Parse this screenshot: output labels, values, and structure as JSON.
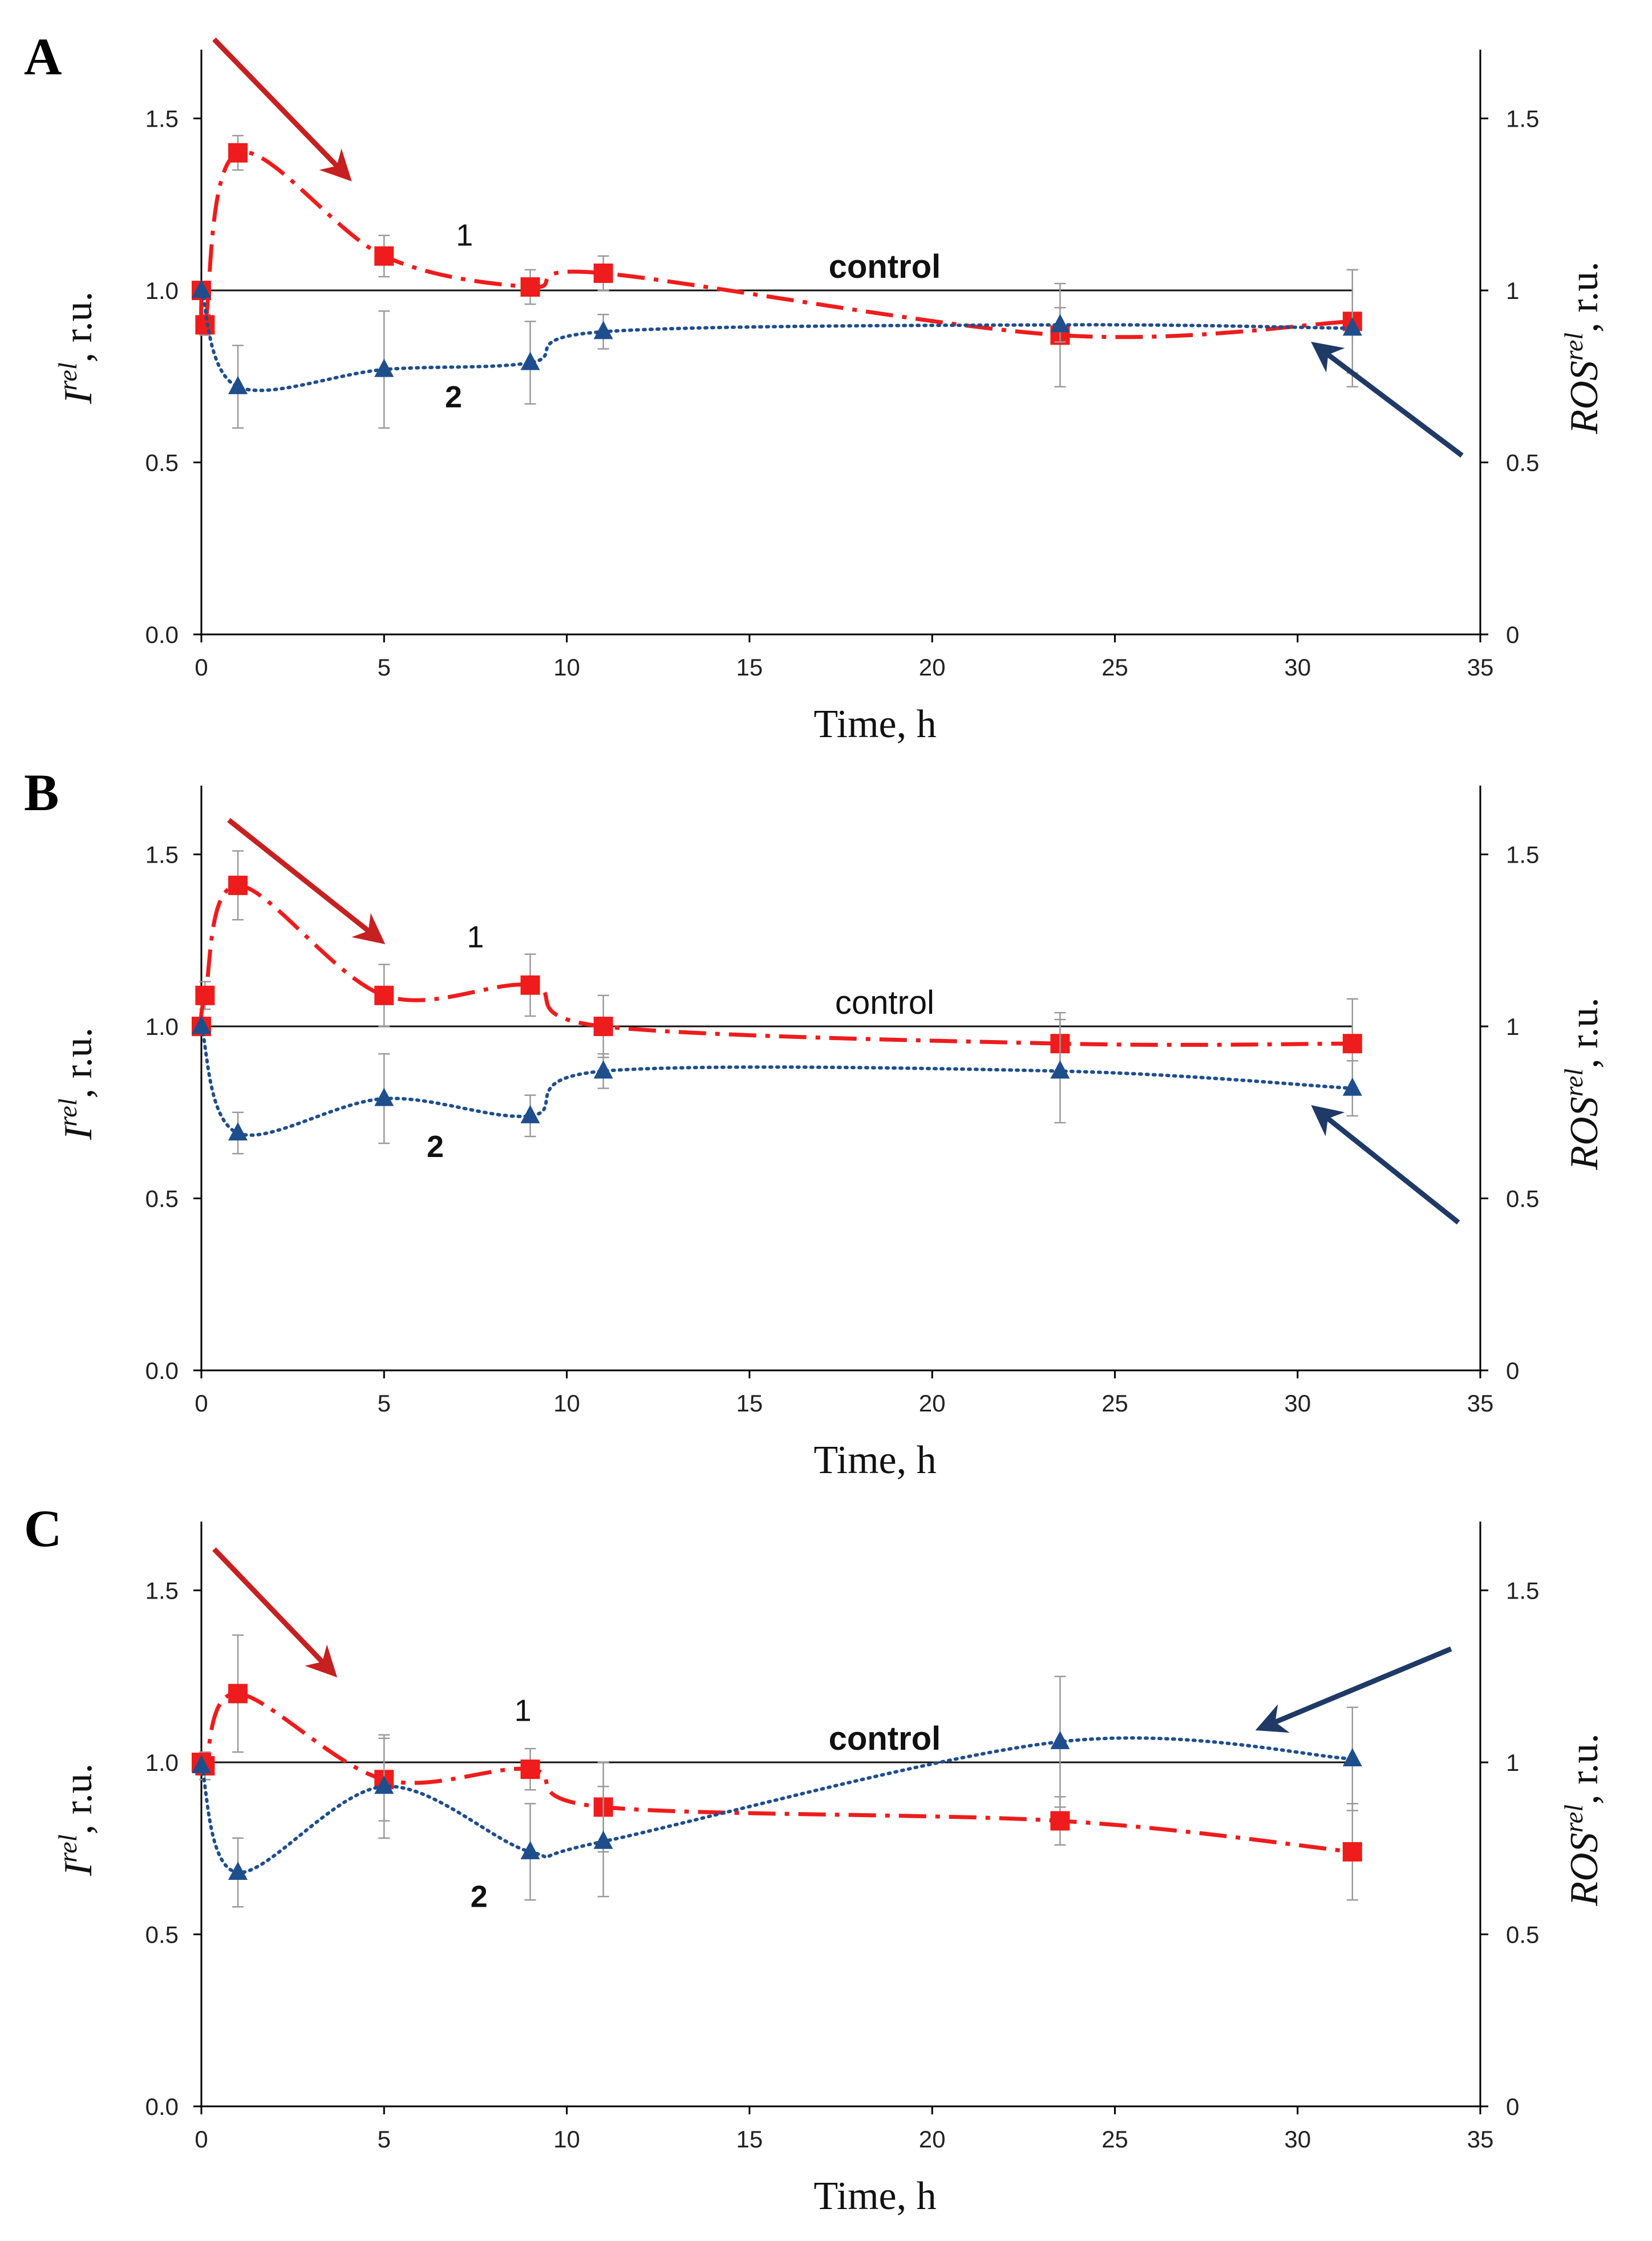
{
  "colors": {
    "series1": "#ee1c1c",
    "series2": "#1f4e8c",
    "arrow_red": "#c62020",
    "arrow_blue": "#1f3a66",
    "axis": "#000000",
    "errorbar": "#9a9a9a"
  },
  "chart_data": [
    {
      "panel": "A",
      "type": "line",
      "xlabel": "Time, h",
      "ylabel_left": "I^rel, r.u.",
      "ylabel_right": "ROS^rel, r.u.",
      "xlim": [
        0,
        35
      ],
      "ylim": [
        0,
        1.7
      ],
      "x_ticks": [
        "0",
        "5",
        "10",
        "15",
        "20",
        "25",
        "30",
        "35"
      ],
      "y_ticks_left": [
        "0.0",
        "0.5",
        "1.0",
        "1.5"
      ],
      "y_ticks_right": [
        "0",
        "0.5",
        "1",
        "1.5"
      ],
      "control_label": "control",
      "control_bold": true,
      "control_value": 1.0,
      "series": [
        {
          "name": "1",
          "label": "1",
          "x": [
            0,
            0.1,
            1,
            5,
            9,
            11,
            23.5,
            31.5
          ],
          "y": [
            1.0,
            0.9,
            1.4,
            1.1,
            1.01,
            1.05,
            0.87,
            0.91
          ],
          "err": [
            0.0,
            0.03,
            0.05,
            0.06,
            0.05,
            0.05,
            0.15,
            0.15
          ]
        },
        {
          "name": "2",
          "label": "2",
          "x": [
            0,
            1,
            5,
            9,
            11,
            23.5,
            31.5
          ],
          "y": [
            1.0,
            0.72,
            0.77,
            0.79,
            0.88,
            0.9,
            0.89
          ],
          "err": [
            0.0,
            0.12,
            0.17,
            0.12,
            0.05,
            0.05,
            0.17
          ]
        }
      ]
    },
    {
      "panel": "B",
      "type": "line",
      "xlabel": "Time, h",
      "ylabel_left": "I^rel, r.u.",
      "ylabel_right": "ROS^rel, r.u.",
      "xlim": [
        0,
        35
      ],
      "ylim": [
        0,
        1.7
      ],
      "x_ticks": [
        "0",
        "5",
        "10",
        "15",
        "20",
        "25",
        "30",
        "35"
      ],
      "y_ticks_left": [
        "0.0",
        "0.5",
        "1.0",
        "1.5"
      ],
      "y_ticks_right": [
        "0",
        "0.5",
        "1",
        "1.5"
      ],
      "control_label": "control",
      "control_bold": false,
      "control_value": 1.0,
      "series": [
        {
          "name": "1",
          "label": "1",
          "x": [
            0,
            0.1,
            1,
            5,
            9,
            11,
            23.5,
            31.5
          ],
          "y": [
            1.0,
            1.09,
            1.41,
            1.09,
            1.12,
            1.0,
            0.95,
            0.95
          ],
          "err": [
            0.0,
            0.04,
            0.1,
            0.09,
            0.09,
            0.09,
            0.09,
            0.13
          ]
        },
        {
          "name": "2",
          "label": "2",
          "x": [
            0,
            1,
            5,
            9,
            11,
            23.5,
            31.5
          ],
          "y": [
            1.0,
            0.69,
            0.79,
            0.74,
            0.87,
            0.87,
            0.82
          ],
          "err": [
            0.0,
            0.06,
            0.13,
            0.06,
            0.05,
            0.15,
            0.08
          ]
        }
      ]
    },
    {
      "panel": "C",
      "type": "line",
      "xlabel": "Time, h",
      "ylabel_left": "I^rel, r.u.",
      "ylabel_right": "ROS^rel, r.u.",
      "xlim": [
        0,
        35
      ],
      "ylim": [
        0,
        1.7
      ],
      "x_ticks": [
        "0",
        "5",
        "10",
        "15",
        "20",
        "25",
        "30",
        "35"
      ],
      "y_ticks_left": [
        "0.0",
        "0.5",
        "1.0",
        "1.5"
      ],
      "y_ticks_right": [
        "0",
        "0.5",
        "1",
        "1.5"
      ],
      "control_label": "control",
      "control_bold": true,
      "control_value": 1.0,
      "series": [
        {
          "name": "1",
          "label": "1",
          "x": [
            0,
            0.1,
            1,
            5,
            9,
            11,
            23.5,
            31.5
          ],
          "y": [
            1.0,
            0.99,
            1.2,
            0.95,
            0.98,
            0.87,
            0.83,
            0.74
          ],
          "err": [
            0.0,
            0.04,
            0.17,
            0.12,
            0.06,
            0.13,
            0.07,
            0.14
          ]
        },
        {
          "name": "2",
          "label": "2",
          "x": [
            0,
            1,
            5,
            9,
            11,
            23.5,
            31.5
          ],
          "y": [
            0.99,
            0.68,
            0.93,
            0.74,
            0.77,
            1.06,
            1.01
          ],
          "err": [
            0.0,
            0.1,
            0.15,
            0.14,
            0.16,
            0.19,
            0.15
          ]
        }
      ]
    }
  ]
}
